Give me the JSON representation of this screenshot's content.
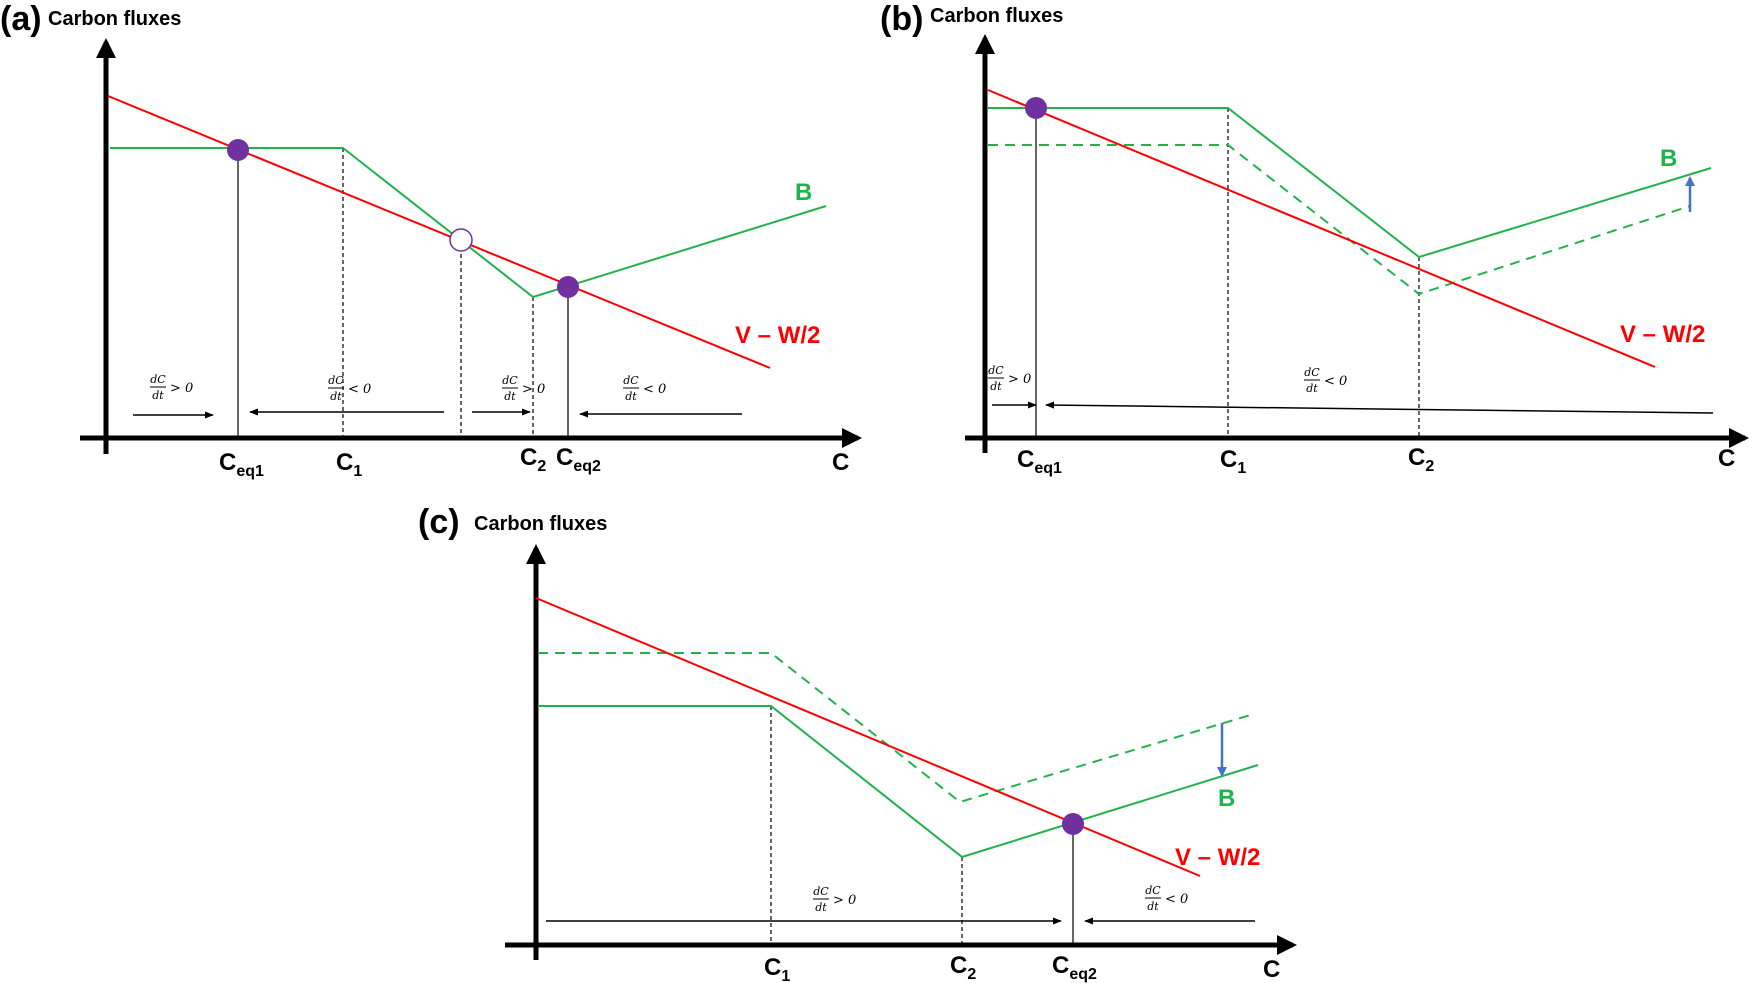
{
  "panels": {
    "a": {
      "label": "(a)",
      "y_label": "Carbon fluxes",
      "x_label": "C",
      "b_label": "B",
      "v_label": "V – W/2",
      "ticks": {
        "ceq1_main": "C",
        "ceq1_sub": "eq1",
        "c1_main": "C",
        "c1_sub": "1",
        "c2_main": "C",
        "c2_sub": "2",
        "ceq2_main": "C",
        "ceq2_sub": "eq2"
      },
      "arrows": [
        {
          "num": "dC",
          "den": "dt",
          "rel": "> 0"
        },
        {
          "num": "dC",
          "den": "dt",
          "rel": "< 0"
        },
        {
          "num": "dC",
          "den": "dt",
          "rel": "> 0"
        },
        {
          "num": "dC",
          "den": "dt",
          "rel": "< 0"
        }
      ]
    },
    "b": {
      "label": "(b)",
      "y_label": "Carbon fluxes",
      "x_label": "C",
      "b_label": "B",
      "v_label": "V – W/2",
      "ticks": {
        "ceq1_main": "C",
        "ceq1_sub": "eq1",
        "c1_main": "C",
        "c1_sub": "1",
        "c2_main": "C",
        "c2_sub": "2"
      },
      "arrows": [
        {
          "num": "dC",
          "den": "dt",
          "rel": "> 0"
        },
        {
          "num": "dC",
          "den": "dt",
          "rel": "< 0"
        }
      ]
    },
    "c": {
      "label": "(c)",
      "y_label": "Carbon fluxes",
      "x_label": "C",
      "b_label": "B",
      "v_label": "V – W/2",
      "ticks": {
        "c1_main": "C",
        "c1_sub": "1",
        "c2_main": "C",
        "c2_sub": "2",
        "ceq2_main": "C",
        "ceq2_sub": "eq2"
      },
      "arrows": [
        {
          "num": "dC",
          "den": "dt",
          "rel": "> 0"
        },
        {
          "num": "dC",
          "den": "dt",
          "rel": "< 0"
        }
      ]
    }
  },
  "colors": {
    "b_line": "#22b24c",
    "v_line": "#ff0000",
    "equilibrium_point": "#7030a0",
    "shift_arrow": "#4472c4",
    "axis": "#000000"
  }
}
